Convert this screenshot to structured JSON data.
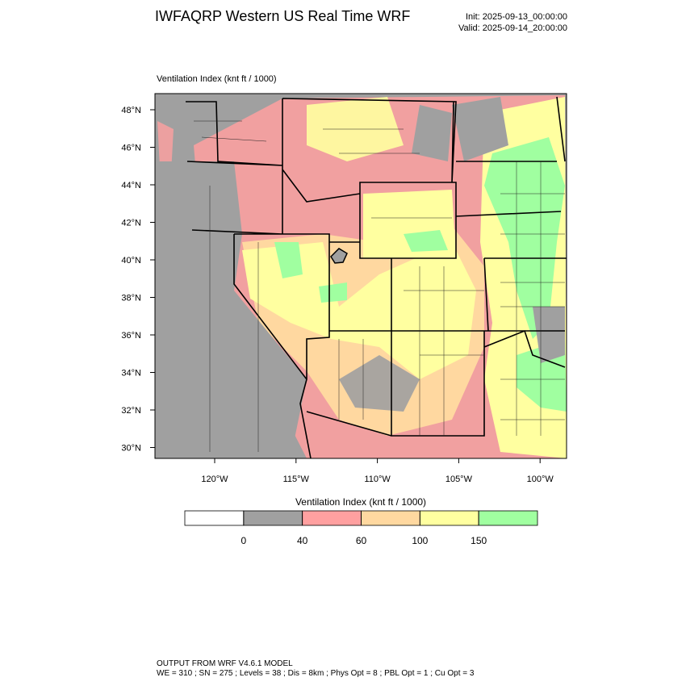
{
  "header": {
    "title": "IWFAQRP Western US Real Time WRF",
    "init": "Init: 2025-09-13_00:00:00",
    "valid": "Valid: 2025-09-14_20:00:00"
  },
  "map": {
    "label": "Ventilation Index   (knt ft / 1000)",
    "lat_ticks": [
      "48°N",
      "46°N",
      "44°N",
      "42°N",
      "40°N",
      "38°N",
      "36°N",
      "34°N",
      "32°N",
      "30°N"
    ],
    "lon_ticks": [
      "120°W",
      "115°W",
      "110°W",
      "105°W",
      "100°W"
    ]
  },
  "colorbar": {
    "title": "Ventilation Index   (knt ft / 1000)",
    "levels": [
      0,
      40,
      60,
      100,
      150
    ],
    "colors": [
      "#ffffff",
      "#a0a0a0",
      "#ffa0a0",
      "#ffd8a0",
      "#ffffa0",
      "#a0ffa0"
    ]
  },
  "footer": {
    "line1": "OUTPUT FROM WRF V4.6.1 MODEL",
    "line2": "WE = 310 ; SN = 275 ; Levels = 38 ; Dis = 8km ; Phys Opt = 8 ; PBL Opt = 1 ; Cu Opt = 3"
  }
}
